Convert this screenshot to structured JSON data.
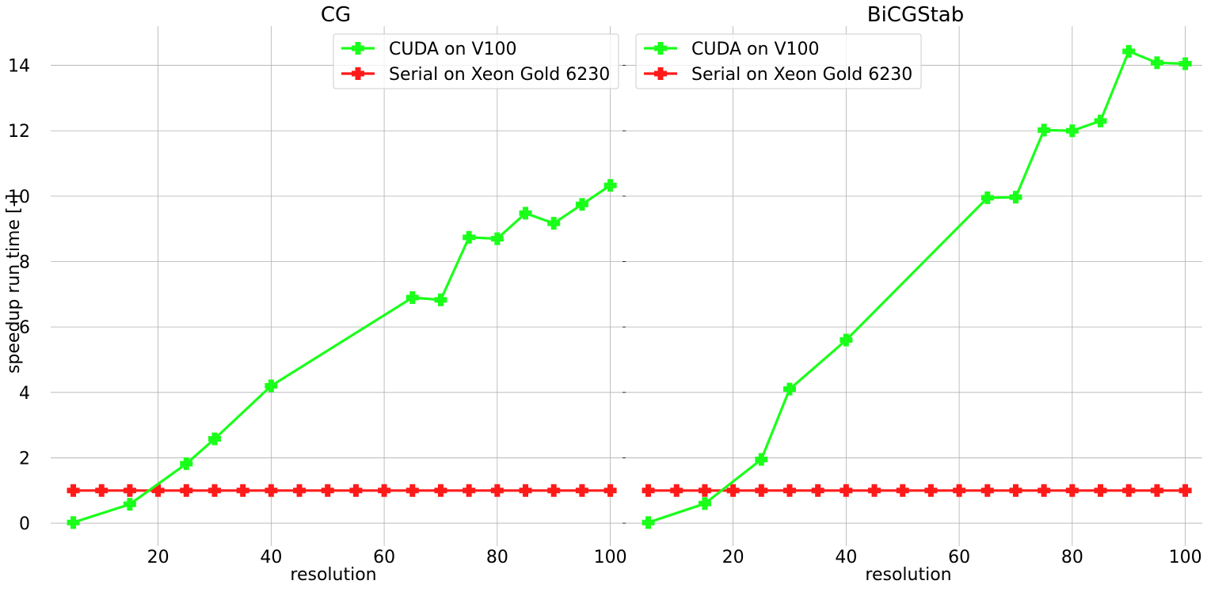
{
  "chart_data": [
    {
      "type": "line",
      "title": "CG",
      "xlabel": "resolution",
      "ylabel": "speedup run time [-]",
      "xlim": [
        1,
        103
      ],
      "ylim": [
        -0.7,
        15.2
      ],
      "xticks": [
        20,
        40,
        60,
        80,
        100
      ],
      "yticks": [
        0,
        2,
        4,
        6,
        8,
        10,
        12,
        14
      ],
      "grid": true,
      "legend_position": "top-right",
      "series": [
        {
          "name": "CUDA on V100",
          "color": "#1aff1a",
          "marker": "plus",
          "x": [
            5,
            15,
            25,
            30,
            40,
            65,
            70,
            75,
            80,
            85,
            90,
            95,
            100
          ],
          "y": [
            0.02,
            0.58,
            1.82,
            2.58,
            4.2,
            6.9,
            6.83,
            8.74,
            8.7,
            9.48,
            9.17,
            9.75,
            10.33
          ]
        },
        {
          "name": "Serial on Xeon Gold 6230",
          "color": "#ff1a1a",
          "marker": "plus",
          "x": [
            5,
            10,
            15,
            20,
            25,
            30,
            35,
            40,
            45,
            50,
            55,
            60,
            65,
            70,
            75,
            80,
            85,
            90,
            95,
            100
          ],
          "y": [
            1,
            1,
            1,
            1,
            1,
            1,
            1,
            1,
            1,
            1,
            1,
            1,
            1,
            1,
            1,
            1,
            1,
            1,
            1,
            1
          ]
        }
      ]
    },
    {
      "type": "line",
      "title": "BiCGStab",
      "xlabel": "resolution",
      "ylabel": "",
      "xlim": [
        1,
        103
      ],
      "ylim": [
        -0.7,
        15.2
      ],
      "xticks": [
        20,
        40,
        60,
        80,
        100
      ],
      "yticks": [
        0,
        2,
        4,
        6,
        8,
        10,
        12,
        14
      ],
      "grid": true,
      "legend_position": "top-left",
      "series": [
        {
          "name": "CUDA on V100",
          "color": "#1aff1a",
          "marker": "plus",
          "x": [
            5,
            15,
            25,
            30,
            40,
            65,
            70,
            75,
            80,
            85,
            90,
            95,
            100
          ],
          "y": [
            0.02,
            0.6,
            1.95,
            4.1,
            5.6,
            9.95,
            9.97,
            12.02,
            12.0,
            12.3,
            14.43,
            14.08,
            14.05
          ]
        },
        {
          "name": "Serial on Xeon Gold 6230",
          "color": "#ff1a1a",
          "marker": "plus",
          "x": [
            5,
            10,
            15,
            20,
            25,
            30,
            35,
            40,
            45,
            50,
            55,
            60,
            65,
            70,
            75,
            80,
            85,
            90,
            95,
            100
          ],
          "y": [
            1,
            1,
            1,
            1,
            1,
            1,
            1,
            1,
            1,
            1,
            1,
            1,
            1,
            1,
            1,
            1,
            1,
            1,
            1,
            1
          ]
        }
      ]
    }
  ]
}
